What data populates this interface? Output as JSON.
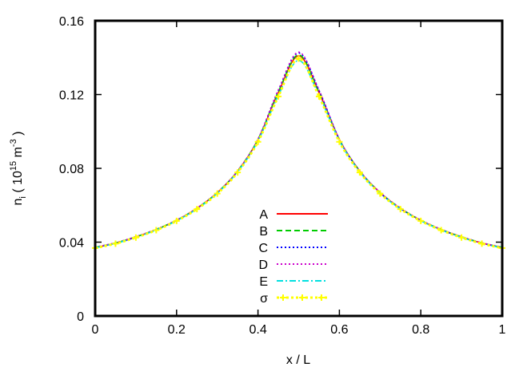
{
  "chart_data": {
    "type": "line",
    "title": "",
    "xlabel": "x / L",
    "ylabel": {
      "base": "n",
      "subscript": "i",
      "open": " ( 10",
      "exp1": "15",
      "unit": " m",
      "exp2": "-3",
      "close": " )"
    },
    "xlim": [
      0,
      1
    ],
    "ylim": [
      0,
      0.16
    ],
    "xticks": [
      0,
      0.2,
      0.4,
      0.6,
      0.8,
      1
    ],
    "xtick_labels": [
      "0",
      "0.2",
      "0.4",
      "0.6",
      "0.8",
      "1"
    ],
    "yticks": [
      0,
      0.04,
      0.08,
      0.12,
      0.16
    ],
    "ytick_labels": [
      "0",
      "0.04",
      "0.08",
      "0.12",
      "0.16"
    ],
    "grid": false,
    "legend_position": "center-bottom",
    "x": [
      0,
      0.05,
      0.1,
      0.15,
      0.2,
      0.25,
      0.3,
      0.35,
      0.4,
      0.45,
      0.5,
      0.55,
      0.6,
      0.65,
      0.7,
      0.75,
      0.8,
      0.85,
      0.9,
      0.95,
      1
    ],
    "series": [
      {
        "name": "A",
        "color": "#ff0000",
        "dash": "solid",
        "values": [
          0.037,
          0.0395,
          0.0428,
          0.0468,
          0.0518,
          0.0583,
          0.0668,
          0.0785,
          0.0955,
          0.121,
          0.141,
          0.121,
          0.0955,
          0.0785,
          0.0668,
          0.0583,
          0.0518,
          0.0468,
          0.0428,
          0.0395,
          0.037
        ]
      },
      {
        "name": "B",
        "color": "#00cc00",
        "dash": "dashed",
        "values": [
          0.0372,
          0.0396,
          0.0429,
          0.0469,
          0.0519,
          0.0584,
          0.0669,
          0.0786,
          0.0957,
          0.1215,
          0.1415,
          0.1212,
          0.0956,
          0.0786,
          0.0669,
          0.0584,
          0.0519,
          0.0469,
          0.0429,
          0.0396,
          0.0372
        ]
      },
      {
        "name": "C",
        "color": "#0000ff",
        "dash": "dotted",
        "values": [
          0.0371,
          0.0394,
          0.0427,
          0.0467,
          0.0517,
          0.0582,
          0.0667,
          0.0784,
          0.0956,
          0.1222,
          0.1425,
          0.1222,
          0.0957,
          0.0784,
          0.0667,
          0.0582,
          0.0517,
          0.0467,
          0.0427,
          0.0394,
          0.0371
        ]
      },
      {
        "name": "D",
        "color": "#cc00cc",
        "dash": "dotted",
        "values": [
          0.0373,
          0.0397,
          0.043,
          0.047,
          0.052,
          0.0585,
          0.067,
          0.0787,
          0.0959,
          0.1225,
          0.143,
          0.1224,
          0.0958,
          0.0787,
          0.067,
          0.0585,
          0.052,
          0.047,
          0.043,
          0.0397,
          0.0373
        ]
      },
      {
        "name": "E",
        "color": "#00e0e0",
        "dash": "dashdot",
        "values": [
          0.0369,
          0.0393,
          0.0426,
          0.0466,
          0.0516,
          0.058,
          0.0665,
          0.0781,
          0.0948,
          0.1195,
          0.1385,
          0.1196,
          0.0949,
          0.0781,
          0.0665,
          0.058,
          0.0516,
          0.0466,
          0.0426,
          0.0393,
          0.0369
        ]
      },
      {
        "name": "σ",
        "color": "#ffff00",
        "dash": "points",
        "values": [
          0.0368,
          0.0392,
          0.0425,
          0.0465,
          0.0515,
          0.0579,
          0.0663,
          0.0778,
          0.0944,
          0.119,
          0.1395,
          0.119,
          0.0944,
          0.0778,
          0.0663,
          0.0579,
          0.0515,
          0.0465,
          0.0425,
          0.0392,
          0.0368
        ]
      }
    ]
  }
}
